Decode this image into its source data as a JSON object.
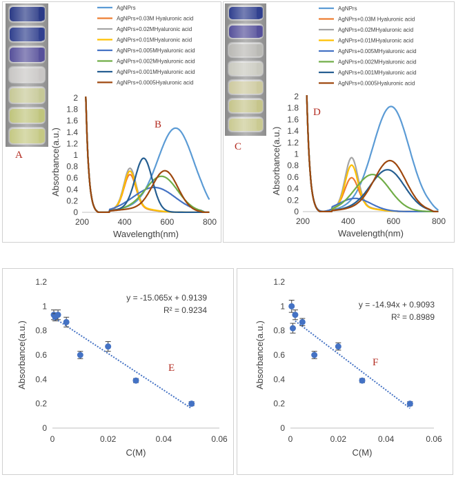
{
  "panel_labels": {
    "A": "A",
    "B": "B",
    "C": "C",
    "D": "D",
    "E": "E",
    "F": "F"
  },
  "vial_colors_left": [
    "#2a3a86",
    "#30408e",
    "#56509a",
    "#c8c6c4",
    "#c6c896",
    "#bfc47c",
    "#c4c883"
  ],
  "vial_colors_right": [
    "#2f3f8e",
    "#55509a",
    "#b9b8b4",
    "#c9c9bf",
    "#cdc99e",
    "#c5c48a",
    "#c9c991"
  ],
  "chart_data": [
    {
      "type": "line",
      "id": "B",
      "xlabel": "Wavelength(nm)",
      "ylabel": "Absorbance(a.u.)",
      "xlim": [
        200,
        800
      ],
      "ylim": [
        0,
        2
      ],
      "xticks": [
        "200",
        "400",
        "600",
        "800"
      ],
      "yticks": [
        "0",
        "0.2",
        "0.4",
        "0.6",
        "0.8",
        "1",
        "1.2",
        "1.4",
        "1.6",
        "1.8",
        "2"
      ],
      "series": [
        {
          "name": "AgNPrs",
          "color": "#5b9bd5",
          "peak": [
            640,
            1.47
          ],
          "width": 85,
          "base": 0.06
        },
        {
          "name": "AgNPrs+0.03M Hyaluronic acid",
          "color": "#ed7d31",
          "peak": [
            425,
            0.58
          ],
          "width": 28,
          "base": 0.08
        },
        {
          "name": "AgNPrs+0.02MHyaluronic acid",
          "color": "#a5a5a5",
          "peak": [
            425,
            0.68
          ],
          "width": 28,
          "base": 0.09
        },
        {
          "name": "AgNPrs+0.01MHyaluronic acid",
          "color": "#ffc000",
          "peak": [
            425,
            0.62
          ],
          "width": 27,
          "base": 0.1
        },
        {
          "name": "AgNPrs+0.005MHyaluronic acid",
          "color": "#4472c4",
          "peak": [
            545,
            0.42
          ],
          "width": 95,
          "base": 0.04
        },
        {
          "name": "AgNPrs+0.002MHyaluronic acid",
          "color": "#70ad47",
          "peak": [
            575,
            0.62
          ],
          "width": 75,
          "base": 0.05
        },
        {
          "name": "AgNPrs+0.001MHyaluronic acid",
          "color": "#255e91",
          "peak": [
            490,
            0.9
          ],
          "width": 40,
          "base": 0.06
        },
        {
          "name": "AgNPrs+0.0005Hyaluronic acid",
          "color": "#9e480e",
          "peak": [
            590,
            0.72
          ],
          "width": 60,
          "base": 0.05
        }
      ]
    },
    {
      "type": "line",
      "id": "D",
      "xlabel": "Wavelength(nm)",
      "ylabel": "Absorbance(a.u.)",
      "xlim": [
        200,
        800
      ],
      "ylim": [
        0,
        2
      ],
      "xticks": [
        "200",
        "400",
        "600",
        "800"
      ],
      "yticks": [
        "0",
        "0.2",
        "0.4",
        "0.6",
        "0.8",
        "1",
        "1.2",
        "1.4",
        "1.6",
        "1.8",
        "2"
      ],
      "series": [
        {
          "name": "AgNPrs",
          "color": "#5b9bd5",
          "peak": [
            590,
            1.82
          ],
          "width": 80,
          "base": 0.05
        },
        {
          "name": "AgNPrs+0.03M Hyaluronic acid",
          "color": "#ed7d31",
          "peak": [
            415,
            0.5
          ],
          "width": 30,
          "base": 0.09
        },
        {
          "name": "AgNPrs+0.02MHyaluronic acid",
          "color": "#a5a5a5",
          "peak": [
            415,
            0.85
          ],
          "width": 28,
          "base": 0.09
        },
        {
          "name": "AgNPrs+0.01MHyaluronic acid",
          "color": "#ffc000",
          "peak": [
            415,
            0.73
          ],
          "width": 28,
          "base": 0.08
        },
        {
          "name": "AgNPrs+0.005MHyaluronic acid",
          "color": "#4472c4",
          "peak": [
            430,
            0.2
          ],
          "width": 70,
          "base": 0.03
        },
        {
          "name": "AgNPrs+0.002MHyaluronic acid",
          "color": "#70ad47",
          "peak": [
            510,
            0.62
          ],
          "width": 75,
          "base": 0.04
        },
        {
          "name": "AgNPrs+0.001MHyaluronic acid",
          "color": "#255e91",
          "peak": [
            575,
            0.72
          ],
          "width": 75,
          "base": 0.04
        },
        {
          "name": "AgNPrs+0.0005Hyaluronic acid",
          "color": "#9e480e",
          "peak": [
            585,
            0.88
          ],
          "width": 70,
          "base": 0.04
        }
      ]
    },
    {
      "type": "scatter",
      "id": "E",
      "xlabel": "C(M)",
      "ylabel": "Absorbance(a.u.)",
      "xlim": [
        0,
        0.06
      ],
      "ylim": [
        0,
        1.2
      ],
      "xticks": [
        "0",
        "0.02",
        "0.04",
        "0.06"
      ],
      "yticks": [
        "0",
        "0.2",
        "0.4",
        "0.6",
        "0.8",
        "1",
        "1.2"
      ],
      "points": [
        {
          "x": 0.0005,
          "y": 0.93,
          "err": 0.04
        },
        {
          "x": 0.001,
          "y": 0.91,
          "err": 0.03
        },
        {
          "x": 0.002,
          "y": 0.93,
          "err": 0.04
        },
        {
          "x": 0.005,
          "y": 0.87,
          "err": 0.04
        },
        {
          "x": 0.01,
          "y": 0.6,
          "err": 0.03
        },
        {
          "x": 0.02,
          "y": 0.67,
          "err": 0.04
        },
        {
          "x": 0.03,
          "y": 0.39,
          "err": 0.01
        },
        {
          "x": 0.05,
          "y": 0.2,
          "err": 0.01
        }
      ],
      "trend": {
        "slope": -15.065,
        "intercept": 0.9139
      },
      "equation": "y = -15.065x + 0.9139",
      "r2": "R² = 0.9234"
    },
    {
      "type": "scatter",
      "id": "F",
      "xlabel": "C(M)",
      "ylabel": "Absorbance(a.u.)",
      "xlim": [
        0,
        0.06
      ],
      "ylim": [
        0,
        1.2
      ],
      "xticks": [
        "0",
        "0.02",
        "0.04",
        "0.06"
      ],
      "yticks": [
        "0",
        "0.2",
        "0.4",
        "0.6",
        "0.8",
        "1",
        "1.2"
      ],
      "points": [
        {
          "x": 0.0005,
          "y": 1.0,
          "err": 0.05
        },
        {
          "x": 0.001,
          "y": 0.82,
          "err": 0.04
        },
        {
          "x": 0.002,
          "y": 0.93,
          "err": 0.04
        },
        {
          "x": 0.005,
          "y": 0.87,
          "err": 0.03
        },
        {
          "x": 0.01,
          "y": 0.6,
          "err": 0.03
        },
        {
          "x": 0.02,
          "y": 0.67,
          "err": 0.03
        },
        {
          "x": 0.03,
          "y": 0.39,
          "err": 0.01
        },
        {
          "x": 0.05,
          "y": 0.2,
          "err": 0.01
        }
      ],
      "trend": {
        "slope": -14.94,
        "intercept": 0.9093
      },
      "equation": "y = -14.94x + 0.9093",
      "r2": "R² = 0.8989"
    }
  ]
}
